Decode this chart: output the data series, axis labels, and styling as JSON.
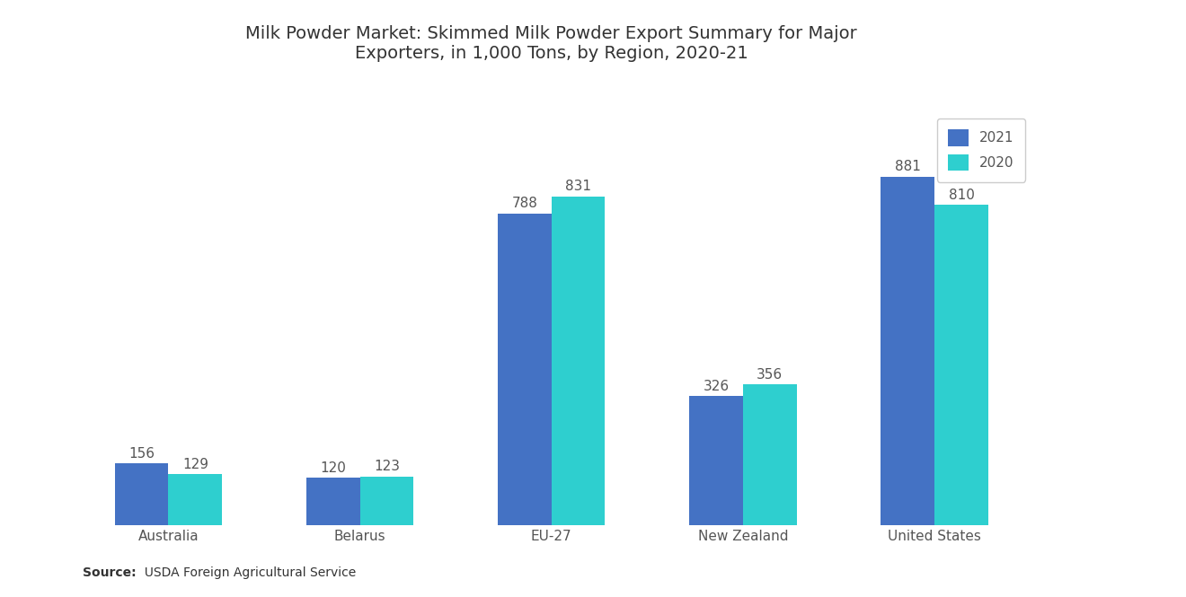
{
  "title": "Milk Powder Market: Skimmed Milk Powder Export Summary for Major\nExporters, in 1,000 Tons, by Region, 2020-21",
  "categories": [
    "Australia",
    "Belarus",
    "EU-27",
    "New Zealand",
    "United States"
  ],
  "values_2021": [
    156,
    120,
    788,
    326,
    881
  ],
  "values_2020": [
    129,
    123,
    831,
    356,
    810
  ],
  "color_2021": "#4472C4",
  "color_2020": "#2ECFCF",
  "background_color": "#ffffff",
  "source_bold": "Source:",
  "source_rest": "  USDA Foreign Agricultural Service",
  "legend_labels": [
    "2021",
    "2020"
  ],
  "bar_width": 0.28,
  "title_fontsize": 14,
  "label_fontsize": 11,
  "tick_fontsize": 11,
  "source_fontsize": 10
}
